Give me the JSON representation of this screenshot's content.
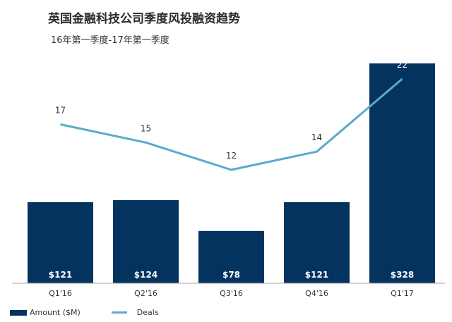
{
  "header": {
    "title": "英国金融科技公司季度风投融资趋势",
    "subtitle": "16年第一季度-17年第一季度"
  },
  "colors": {
    "bar": "#05335f",
    "line": "#5aaac9",
    "axis": "#a6a6a6"
  },
  "legend": {
    "bar_label": "Amount ($M)",
    "line_label": "Deals"
  },
  "chart_data": {
    "type": "bar",
    "title": "英国金融科技公司季度风投融资趋势",
    "subtitle": "16年第一季度-17年第一季度",
    "categories": [
      "Q1'16",
      "Q2'16",
      "Q3'16",
      "Q4'16",
      "Q1'17"
    ],
    "series": [
      {
        "name": "Amount ($M)",
        "type": "bar",
        "values": [
          121,
          124,
          78,
          121,
          328
        ],
        "labels": [
          "$121",
          "$124",
          "$78",
          "$121",
          "$328"
        ]
      },
      {
        "name": "Deals",
        "type": "line",
        "values": [
          17,
          15,
          12,
          14,
          22
        ],
        "labels": [
          "17",
          "15",
          "12",
          "14",
          "22"
        ]
      }
    ],
    "ylim_amount": [
      0,
      328
    ],
    "ylim_deals": [
      0,
      26
    ],
    "grid": false,
    "legend_position": "bottom-left"
  }
}
